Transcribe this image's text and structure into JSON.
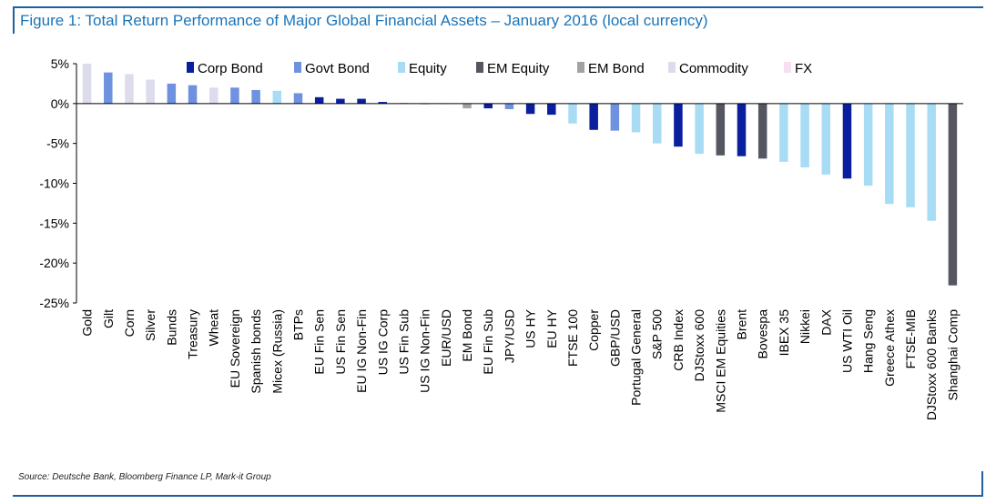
{
  "title": "Figure 1: Total Return Performance of Major Global Financial Assets – January 2016 (local currency)",
  "source": "Source: Deutsche Bank, Bloomberg Finance LP, Mark-it Group",
  "colors": {
    "Corp Bond": "#0a1f9e",
    "Govt Bond": "#6f92e0",
    "Equity": "#a8dcf4",
    "EM Equity": "#545760",
    "EM Bond": "#a2a2a2",
    "Commodity": "#dcdcec",
    "FX": "#f6dff0"
  },
  "chart_data": {
    "type": "bar",
    "title": "Figure 1: Total Return Performance of Major Global Financial Assets – January 2016 (local currency)",
    "xlabel": "",
    "ylabel": "",
    "ylim": [
      -25,
      5
    ],
    "yticks": [
      5,
      0,
      -5,
      -10,
      -15,
      -20,
      -25
    ],
    "ytick_labels": [
      "5%",
      "0%",
      "-5%",
      "-10%",
      "-15%",
      "-20%",
      "-25%"
    ],
    "legend": [
      "Corp Bond",
      "Govt Bond",
      "Equity",
      "EM Equity",
      "EM Bond",
      "Commodity",
      "FX"
    ],
    "legend_position": "top",
    "categories": [
      "Gold",
      "Gilt",
      "Corn",
      "Silver",
      "Bunds",
      "Treasury",
      "Wheat",
      "EU Sovereign",
      "Spanish bonds",
      "Micex (Russia)",
      "BTPs",
      "EU Fin Sen",
      "US Fin Sen",
      "EU IG Non-Fin",
      "US IG Corp",
      "US Fin Sub",
      "US IG Non-Fin",
      "EUR/USD",
      "EM Bond",
      "EU Fin Sub",
      "JPY/USD",
      "US HY",
      "EU HY",
      "FTSE 100",
      "Copper",
      "GBP/USD",
      "Portugal General",
      "S&P 500",
      "CRB Index",
      "DJStoxx 600",
      "MSCI EM Equities",
      "Brent",
      "Bovespa",
      "IBEX 35",
      "Nikkei",
      "DAX",
      "US WTI Oil",
      "Hang Seng",
      "Greece Athex",
      "FTSE-MIB",
      "DJStoxx 600 Banks",
      "Shanghai Comp"
    ],
    "values": [
      5.0,
      3.9,
      3.7,
      3.0,
      2.5,
      2.3,
      2.0,
      2.0,
      1.7,
      1.6,
      1.3,
      0.8,
      0.6,
      0.6,
      0.2,
      0.05,
      -0.05,
      -0.1,
      -0.6,
      -0.6,
      -0.7,
      -1.3,
      -1.4,
      -2.5,
      -3.3,
      -3.4,
      -3.6,
      -5.0,
      -5.4,
      -6.3,
      -6.5,
      -6.6,
      -6.9,
      -7.3,
      -8.0,
      -8.9,
      -9.4,
      -10.3,
      -12.6,
      -13.0,
      -14.7,
      -22.8
    ],
    "groups": [
      "Commodity",
      "Govt Bond",
      "Commodity",
      "Commodity",
      "Govt Bond",
      "Govt Bond",
      "Commodity",
      "Govt Bond",
      "Govt Bond",
      "Equity",
      "Govt Bond",
      "Corp Bond",
      "Corp Bond",
      "Corp Bond",
      "Corp Bond",
      "Corp Bond",
      "Corp Bond",
      "FX",
      "EM Bond",
      "Corp Bond",
      "Govt Bond",
      "Corp Bond",
      "Corp Bond",
      "Equity",
      "Corp Bond",
      "Govt Bond",
      "Equity",
      "Equity",
      "Corp Bond",
      "Equity",
      "EM Equity",
      "Corp Bond",
      "EM Equity",
      "Equity",
      "Equity",
      "Equity",
      "Corp Bond",
      "Equity",
      "Equity",
      "Equity",
      "Equity",
      "EM Equity"
    ],
    "grid": false
  }
}
